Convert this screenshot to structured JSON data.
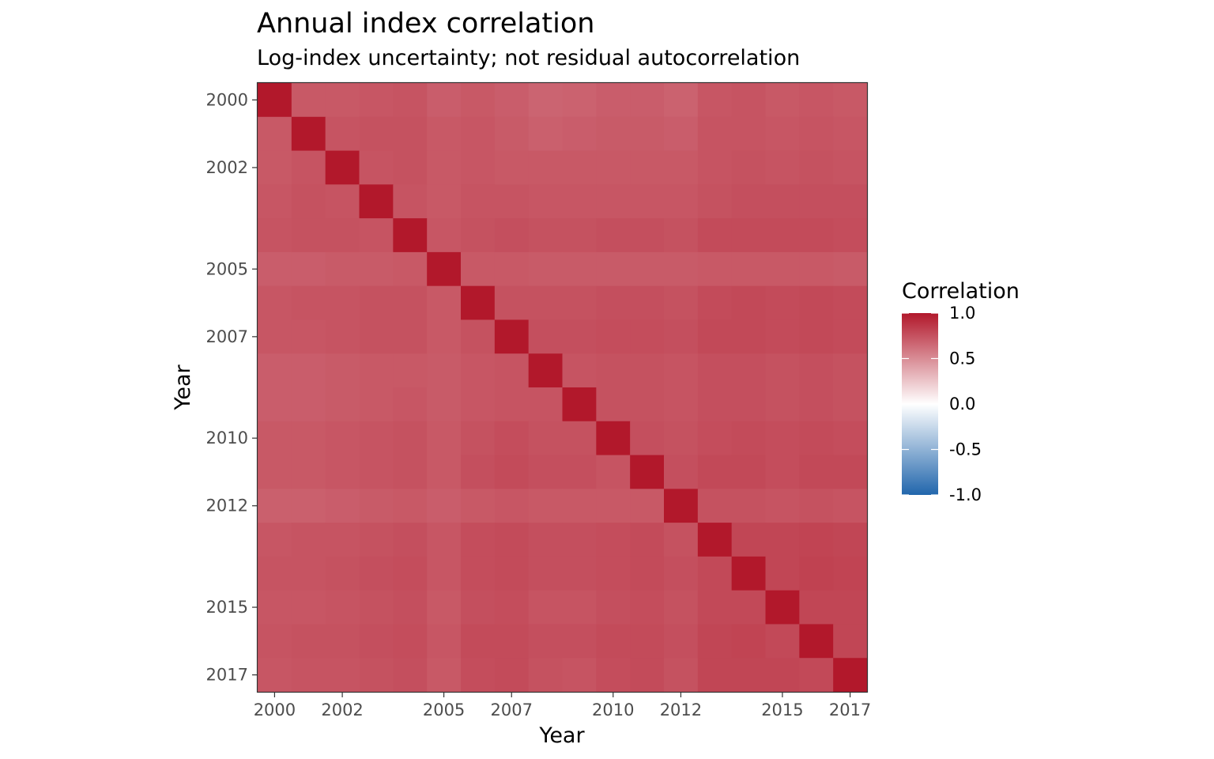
{
  "chart_data": {
    "type": "heatmap",
    "title": "Annual index correlation",
    "subtitle": "Log-index uncertainty; not residual autocorrelation",
    "xlabel": "Year",
    "ylabel": "Year",
    "years": [
      2000,
      2001,
      2002,
      2003,
      2004,
      2005,
      2006,
      2007,
      2008,
      2009,
      2010,
      2011,
      2012,
      2013,
      2014,
      2015,
      2016,
      2017
    ],
    "x_ticks": [
      2000,
      2002,
      2005,
      2007,
      2010,
      2012,
      2015,
      2017
    ],
    "y_ticks": [
      2000,
      2002,
      2005,
      2007,
      2010,
      2012,
      2015,
      2017
    ],
    "y_reversed": true,
    "legend": {
      "title": "Correlation",
      "placement": "right",
      "breaks": [
        1.0,
        0.5,
        0.0,
        -0.5,
        -1.0
      ],
      "break_labels": [
        "1.0",
        "0.5",
        "0.0",
        "-0.5",
        "-1.0"
      ],
      "limits": [
        -1,
        1
      ]
    },
    "colors": {
      "high": "#b2182b",
      "mid": "#ffffff",
      "low": "#2166ac"
    },
    "values": [
      [
        1.0,
        0.72,
        0.72,
        0.73,
        0.74,
        0.7,
        0.72,
        0.7,
        0.67,
        0.68,
        0.7,
        0.7,
        0.68,
        0.73,
        0.74,
        0.72,
        0.73,
        0.72
      ],
      [
        0.72,
        1.0,
        0.74,
        0.75,
        0.75,
        0.72,
        0.73,
        0.71,
        0.69,
        0.7,
        0.71,
        0.71,
        0.7,
        0.74,
        0.74,
        0.73,
        0.74,
        0.73
      ],
      [
        0.72,
        0.74,
        1.0,
        0.74,
        0.75,
        0.72,
        0.73,
        0.72,
        0.72,
        0.72,
        0.72,
        0.72,
        0.72,
        0.74,
        0.75,
        0.74,
        0.75,
        0.74
      ],
      [
        0.73,
        0.75,
        0.74,
        1.0,
        0.74,
        0.72,
        0.74,
        0.74,
        0.73,
        0.73,
        0.73,
        0.73,
        0.73,
        0.75,
        0.76,
        0.76,
        0.76,
        0.76
      ],
      [
        0.74,
        0.75,
        0.75,
        0.74,
        1.0,
        0.73,
        0.75,
        0.76,
        0.75,
        0.75,
        0.76,
        0.76,
        0.75,
        0.78,
        0.78,
        0.78,
        0.78,
        0.77
      ],
      [
        0.7,
        0.7,
        0.71,
        0.71,
        0.72,
        1.0,
        0.72,
        0.72,
        0.71,
        0.71,
        0.71,
        0.71,
        0.71,
        0.72,
        0.72,
        0.72,
        0.72,
        0.71
      ],
      [
        0.73,
        0.74,
        0.74,
        0.75,
        0.75,
        0.72,
        1.0,
        0.75,
        0.75,
        0.75,
        0.76,
        0.76,
        0.75,
        0.78,
        0.79,
        0.78,
        0.79,
        0.78
      ],
      [
        0.73,
        0.73,
        0.74,
        0.75,
        0.75,
        0.72,
        0.75,
        1.0,
        0.76,
        0.76,
        0.77,
        0.77,
        0.76,
        0.79,
        0.79,
        0.78,
        0.79,
        0.78
      ],
      [
        0.7,
        0.7,
        0.71,
        0.72,
        0.72,
        0.71,
        0.73,
        0.74,
        1.0,
        0.74,
        0.75,
        0.75,
        0.74,
        0.76,
        0.76,
        0.75,
        0.76,
        0.75
      ],
      [
        0.7,
        0.7,
        0.71,
        0.72,
        0.73,
        0.71,
        0.73,
        0.74,
        0.74,
        1.0,
        0.75,
        0.75,
        0.74,
        0.76,
        0.76,
        0.75,
        0.76,
        0.75
      ],
      [
        0.72,
        0.72,
        0.73,
        0.74,
        0.75,
        0.72,
        0.75,
        0.77,
        0.75,
        0.75,
        1.0,
        0.76,
        0.75,
        0.77,
        0.78,
        0.77,
        0.78,
        0.77
      ],
      [
        0.72,
        0.72,
        0.73,
        0.74,
        0.75,
        0.72,
        0.76,
        0.78,
        0.76,
        0.76,
        0.74,
        1.0,
        0.76,
        0.79,
        0.79,
        0.77,
        0.79,
        0.79
      ],
      [
        0.69,
        0.69,
        0.7,
        0.71,
        0.72,
        0.7,
        0.72,
        0.73,
        0.72,
        0.72,
        0.72,
        0.72,
        1.0,
        0.75,
        0.75,
        0.74,
        0.75,
        0.74
      ],
      [
        0.73,
        0.74,
        0.74,
        0.75,
        0.76,
        0.73,
        0.77,
        0.78,
        0.76,
        0.76,
        0.77,
        0.78,
        0.75,
        1.0,
        0.8,
        0.8,
        0.81,
        0.8
      ],
      [
        0.74,
        0.74,
        0.75,
        0.76,
        0.77,
        0.73,
        0.77,
        0.78,
        0.76,
        0.76,
        0.77,
        0.78,
        0.76,
        0.79,
        1.0,
        0.8,
        0.82,
        0.81
      ],
      [
        0.73,
        0.73,
        0.74,
        0.75,
        0.76,
        0.72,
        0.76,
        0.77,
        0.74,
        0.74,
        0.76,
        0.77,
        0.75,
        0.79,
        0.79,
        1.0,
        0.8,
        0.8
      ],
      [
        0.74,
        0.75,
        0.75,
        0.76,
        0.77,
        0.73,
        0.78,
        0.78,
        0.76,
        0.76,
        0.78,
        0.78,
        0.76,
        0.8,
        0.81,
        0.79,
        1.0,
        0.8
      ],
      [
        0.73,
        0.74,
        0.74,
        0.75,
        0.76,
        0.72,
        0.77,
        0.78,
        0.75,
        0.74,
        0.77,
        0.78,
        0.75,
        0.8,
        0.8,
        0.8,
        0.79,
        1.0
      ]
    ]
  }
}
